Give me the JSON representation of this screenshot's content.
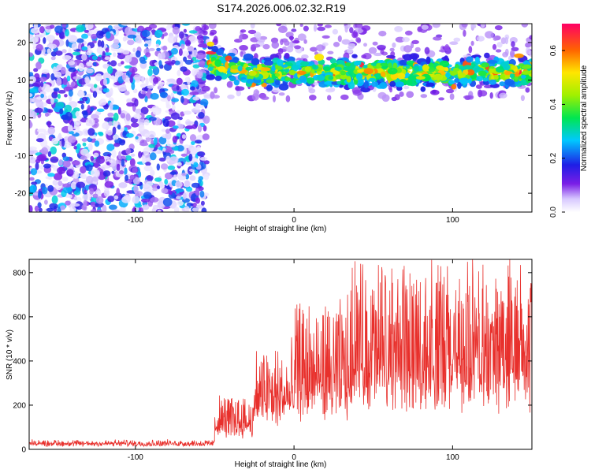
{
  "title": "S174.2026.006.02.32.R19",
  "chart_data": [
    {
      "type": "heatmap",
      "name": "spectrogram",
      "xlabel": "Height of straight line (km)",
      "ylabel": "Frequency (Hz)",
      "xlim": [
        -167,
        150
      ],
      "ylim": [
        -25,
        25
      ],
      "xticks": [
        -100,
        0,
        100
      ],
      "yticks": [
        -20,
        -10,
        0,
        10,
        20
      ],
      "colorbar": {
        "label": "Normalized spectral amplitude",
        "range": [
          0,
          0.7
        ],
        "ticks": [
          "0.0",
          "0.2",
          "0.4",
          "0.6"
        ],
        "tick_values": [
          0.0,
          0.2,
          0.4,
          0.6
        ]
      },
      "description_points": {
        "noise_region_x": [
          -167,
          -55
        ],
        "signal_onset_x": -55,
        "signal_band_center_hz": 12,
        "signal_band_halfwidth_hz": 4,
        "peak_amplitude": 0.68
      }
    },
    {
      "type": "line",
      "name": "snr",
      "xlabel": "Height of straight line (km)",
      "ylabel": "SNR (10 * v/v)",
      "xlim": [
        -167,
        150
      ],
      "ylim": [
        0,
        860
      ],
      "xticks": [
        -100,
        0,
        100
      ],
      "yticks": [
        0,
        200,
        400,
        600,
        800
      ],
      "color": "#e8302c",
      "segments": [
        {
          "x_start": -167,
          "x_end": -50,
          "baseline": 20,
          "spread": 20
        },
        {
          "x_start": -50,
          "x_end": -25,
          "baseline": 80,
          "spread": 160
        },
        {
          "x_start": -25,
          "x_end": 0,
          "baseline": 150,
          "spread": 300
        },
        {
          "x_start": 0,
          "x_end": 35,
          "baseline": 200,
          "spread": 450
        },
        {
          "x_start": 35,
          "x_end": 150,
          "baseline": 260,
          "spread": 560
        }
      ],
      "peak_value": 845
    }
  ]
}
